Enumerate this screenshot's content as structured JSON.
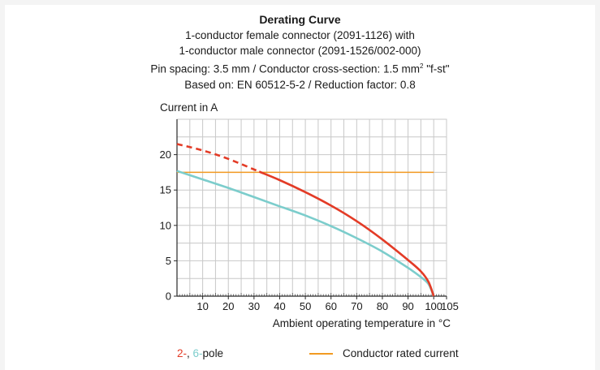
{
  "chart_data": {
    "type": "line",
    "title": "Derating Curve",
    "subtitle_lines": [
      "1-conductor female connector (2091-1126) with",
      "1-conductor male connector (2091-1526/002-000)",
      "Pin spacing: 3.5 mm / Conductor cross-section: 1.5 mm",
      "Based on: EN 60512-5-2 / Reduction factor: 0.8"
    ],
    "subtitle_superscript": "2",
    "subtitle_suffix": " \"f-st\"",
    "ylabel": "Current in A",
    "xlabel": "Ambient operating temperature in °C",
    "xlim": [
      0,
      105
    ],
    "ylim": [
      0,
      25
    ],
    "xticks": [
      10,
      20,
      30,
      40,
      50,
      60,
      70,
      80,
      90,
      100,
      105
    ],
    "yticks": [
      0,
      5,
      10,
      15,
      20
    ],
    "grid": true,
    "series": [
      {
        "name_parts": [
          "2-",
          ", ",
          "6-",
          "pole"
        ],
        "color": "#e33b26",
        "x": [
          0,
          10,
          20,
          32,
          40,
          50,
          60,
          70,
          80,
          90,
          95,
          98,
          100
        ],
        "y": [
          21.5,
          20.6,
          19.4,
          17.6,
          16.4,
          14.7,
          12.8,
          10.6,
          8.0,
          5.1,
          3.5,
          2.0,
          0
        ],
        "dashed_until_x": 32
      },
      {
        "name": "6-pole",
        "color": "#7ccdcc",
        "x": [
          0,
          10,
          20,
          30,
          40,
          50,
          60,
          70,
          80,
          90,
          95,
          98,
          100
        ],
        "y": [
          17.7,
          16.5,
          15.3,
          14.0,
          12.7,
          11.4,
          9.9,
          8.2,
          6.3,
          4.0,
          2.7,
          1.7,
          0
        ]
      },
      {
        "name": "Conductor rated current",
        "color": "#f29a22",
        "x": [
          0,
          100
        ],
        "y": [
          17.5,
          17.5
        ]
      }
    ],
    "legend": [
      {
        "part": "2-",
        "color": "#e33b26"
      },
      {
        "part": ", ",
        "color": "#1a1a1a"
      },
      {
        "part": "6-",
        "color": "#7ccdcc"
      },
      {
        "part": "pole",
        "color": "#1a1a1a"
      }
    ],
    "legend_line_label": "Conductor rated current"
  }
}
